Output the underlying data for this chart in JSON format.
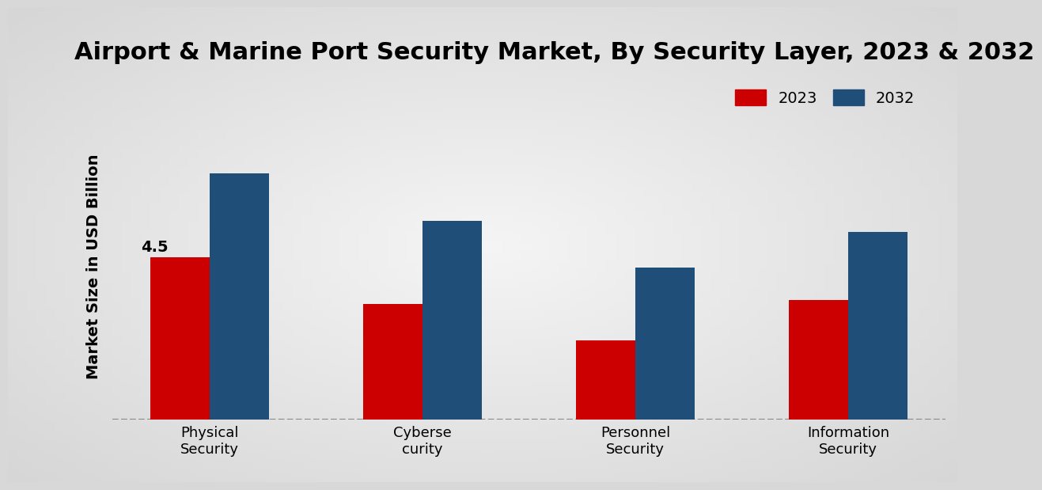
{
  "title": "Airport & Marine Port Security Market, By Security Layer, 2023 & 2032",
  "ylabel": "Market Size in USD Billion",
  "categories": [
    "Physical\nSecurity",
    "Cyberse\ncurity",
    "Personnel\nSecurity",
    "Information\nSecurity"
  ],
  "values_2023": [
    4.5,
    3.2,
    2.2,
    3.3
  ],
  "values_2032": [
    6.8,
    5.5,
    4.2,
    5.2
  ],
  "color_2023": "#cc0000",
  "color_2032": "#1f4e79",
  "bar_width": 0.28,
  "bar_gap": 0.0,
  "ylim": [
    0,
    8.5
  ],
  "annotation_value": "4.5",
  "title_fontsize": 22,
  "ylabel_fontsize": 14,
  "tick_fontsize": 13,
  "legend_fontsize": 14,
  "bg_color_center": "#f0f0f0",
  "bg_color_edge": "#c0c0c0",
  "bottom_bar_color": "#cc0000"
}
